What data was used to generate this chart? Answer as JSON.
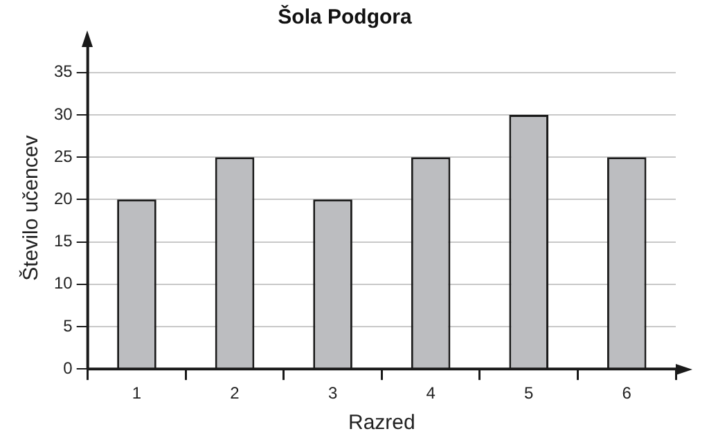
{
  "chart_data": {
    "type": "bar",
    "title": "Šola Podgora",
    "xlabel": "Razred",
    "ylabel": "Število učencev",
    "categories": [
      "1",
      "2",
      "3",
      "4",
      "5",
      "6"
    ],
    "values": [
      20,
      25,
      20,
      25,
      30,
      25
    ],
    "color": "#bcbdc0",
    "ylim": [
      0,
      38
    ],
    "yticks": [
      0,
      5,
      10,
      15,
      20,
      25,
      30,
      35
    ],
    "grid": "y"
  }
}
